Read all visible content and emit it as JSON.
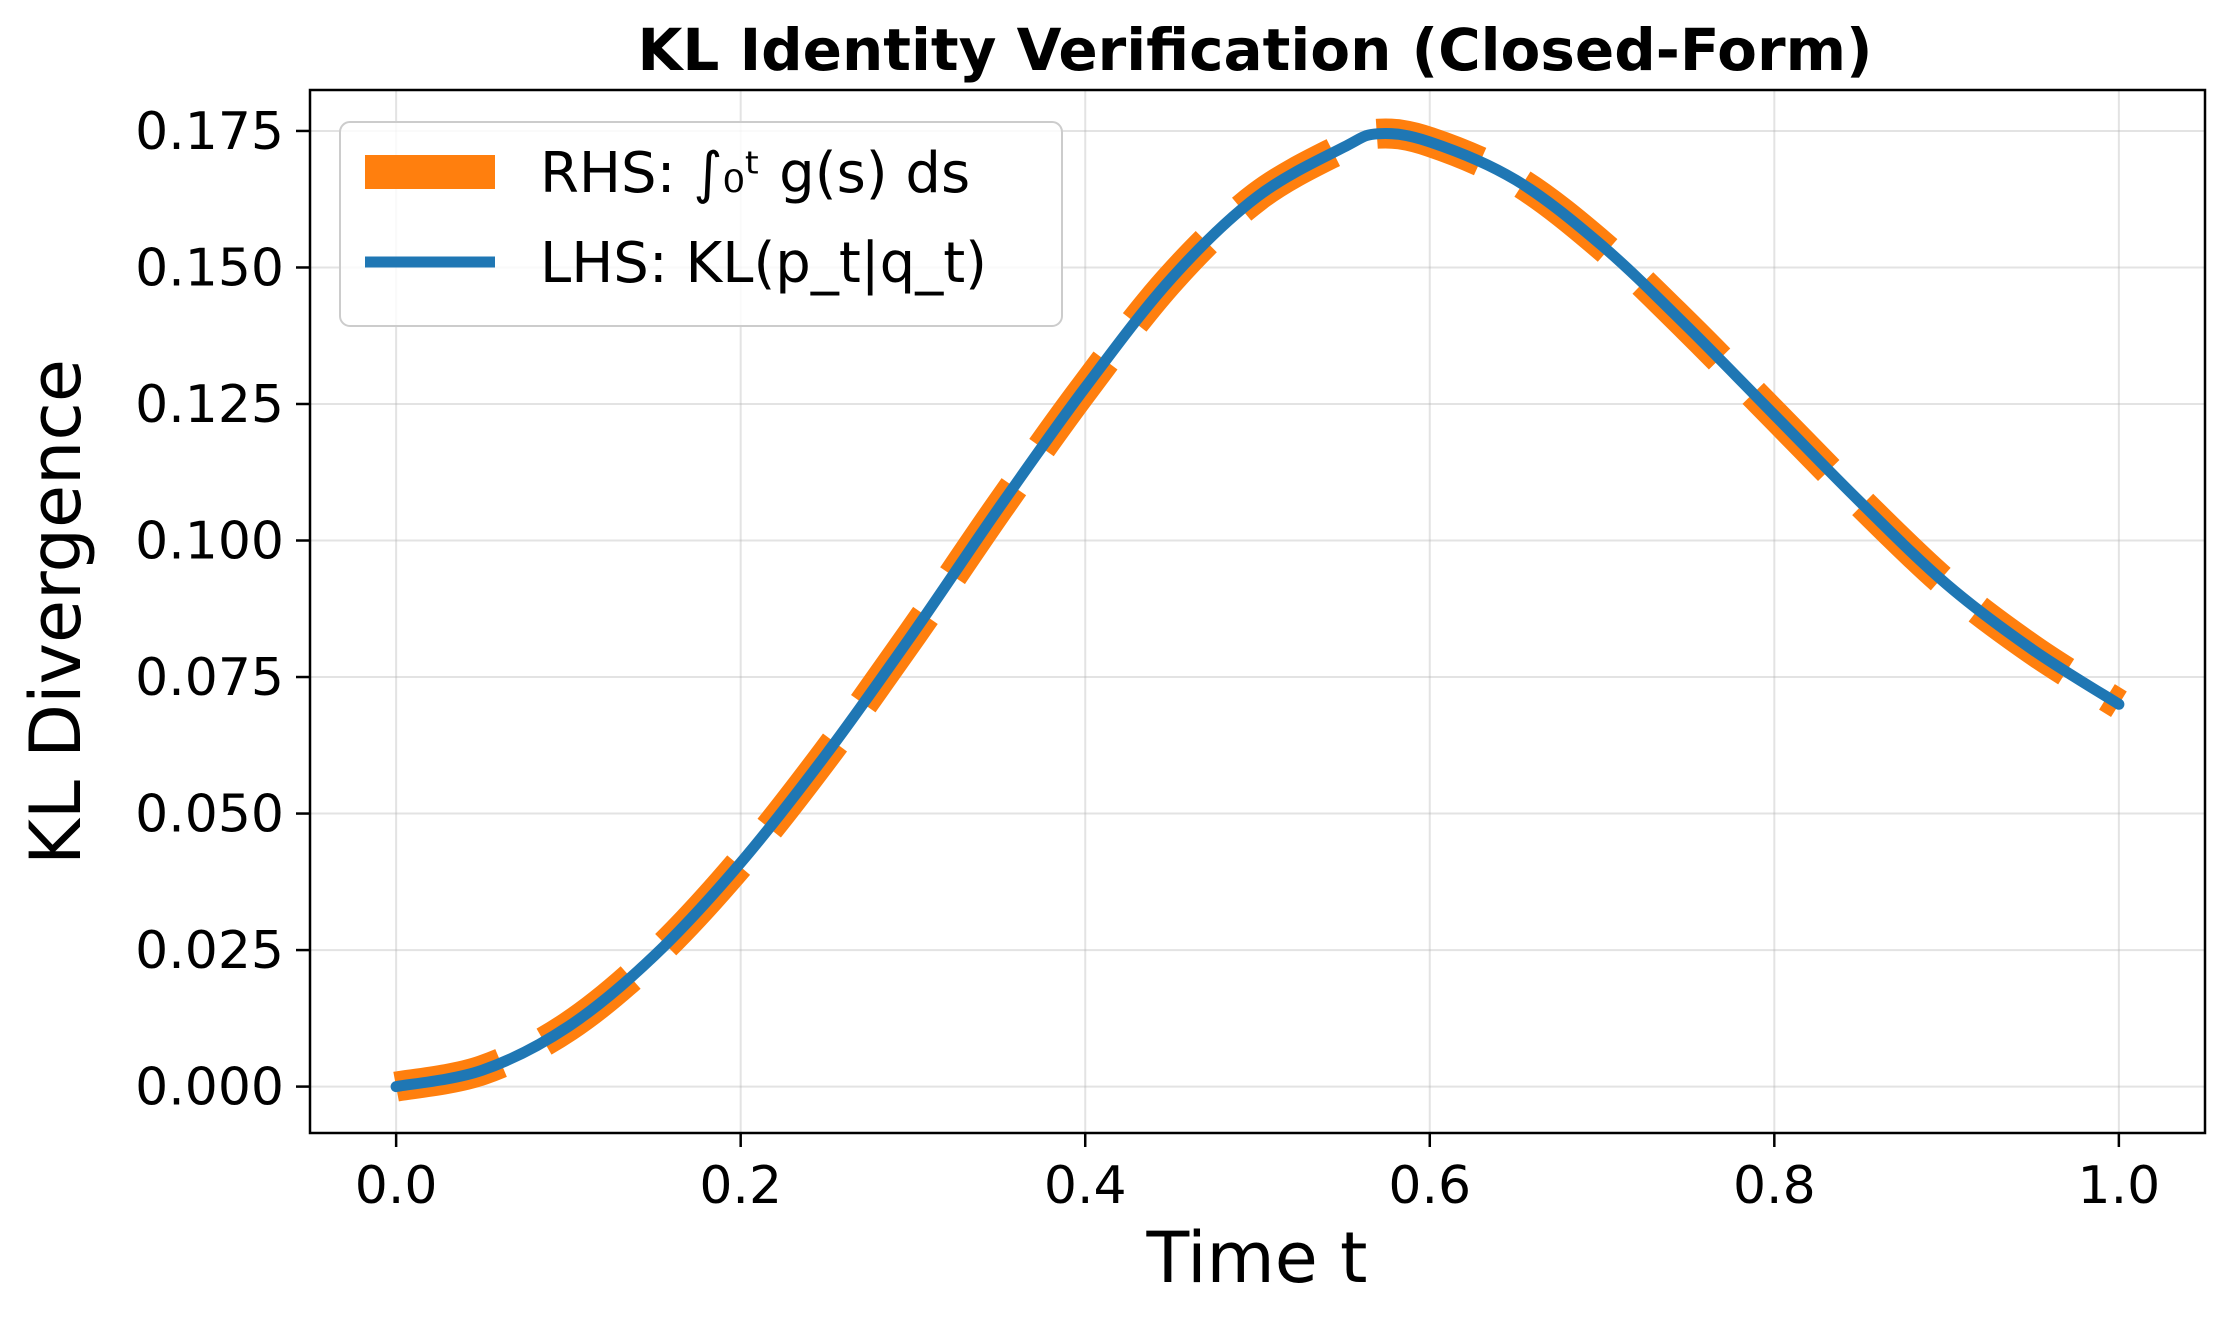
{
  "chart_data": {
    "type": "line",
    "title": "KL Identity Verification (Closed-Form)",
    "xlabel": "Time t",
    "ylabel": "KL Divergence",
    "xlim": [
      -0.05,
      1.05
    ],
    "ylim": [
      -0.0085,
      0.1825
    ],
    "x_ticks": [
      0.0,
      0.2,
      0.4,
      0.6,
      0.8,
      1.0
    ],
    "x_tick_labels": [
      "0.0",
      "0.2",
      "0.4",
      "0.6",
      "0.8",
      "1.0"
    ],
    "y_ticks": [
      0.0,
      0.025,
      0.05,
      0.075,
      0.1,
      0.125,
      0.15,
      0.175
    ],
    "y_tick_labels": [
      "0.000",
      "0.025",
      "0.050",
      "0.075",
      "0.100",
      "0.125",
      "0.150",
      "0.175"
    ],
    "grid": true,
    "legend_position": "top-left",
    "x": [
      0.0,
      0.05,
      0.1,
      0.15,
      0.2,
      0.25,
      0.3,
      0.35,
      0.4,
      0.45,
      0.5,
      0.55,
      0.57,
      0.6,
      0.65,
      0.7,
      0.75,
      0.8,
      0.85,
      0.9,
      0.95,
      1.0
    ],
    "series": [
      {
        "name": "RHS: ∫₀ᵗ g(s) ds",
        "color": "#ff7f0e",
        "style": "dashed",
        "values": [
          0.0,
          0.003,
          0.011,
          0.024,
          0.041,
          0.061,
          0.083,
          0.106,
          0.128,
          0.148,
          0.163,
          0.172,
          0.1745,
          0.173,
          0.166,
          0.154,
          0.139,
          0.123,
          0.107,
          0.092,
          0.08,
          0.07
        ]
      },
      {
        "name": "LHS: KL(p_t|q_t)",
        "color": "#1f77b4",
        "style": "solid",
        "values": [
          0.0,
          0.003,
          0.011,
          0.024,
          0.041,
          0.061,
          0.083,
          0.106,
          0.128,
          0.148,
          0.163,
          0.172,
          0.1745,
          0.173,
          0.166,
          0.154,
          0.139,
          0.123,
          0.107,
          0.092,
          0.08,
          0.07
        ]
      }
    ]
  }
}
